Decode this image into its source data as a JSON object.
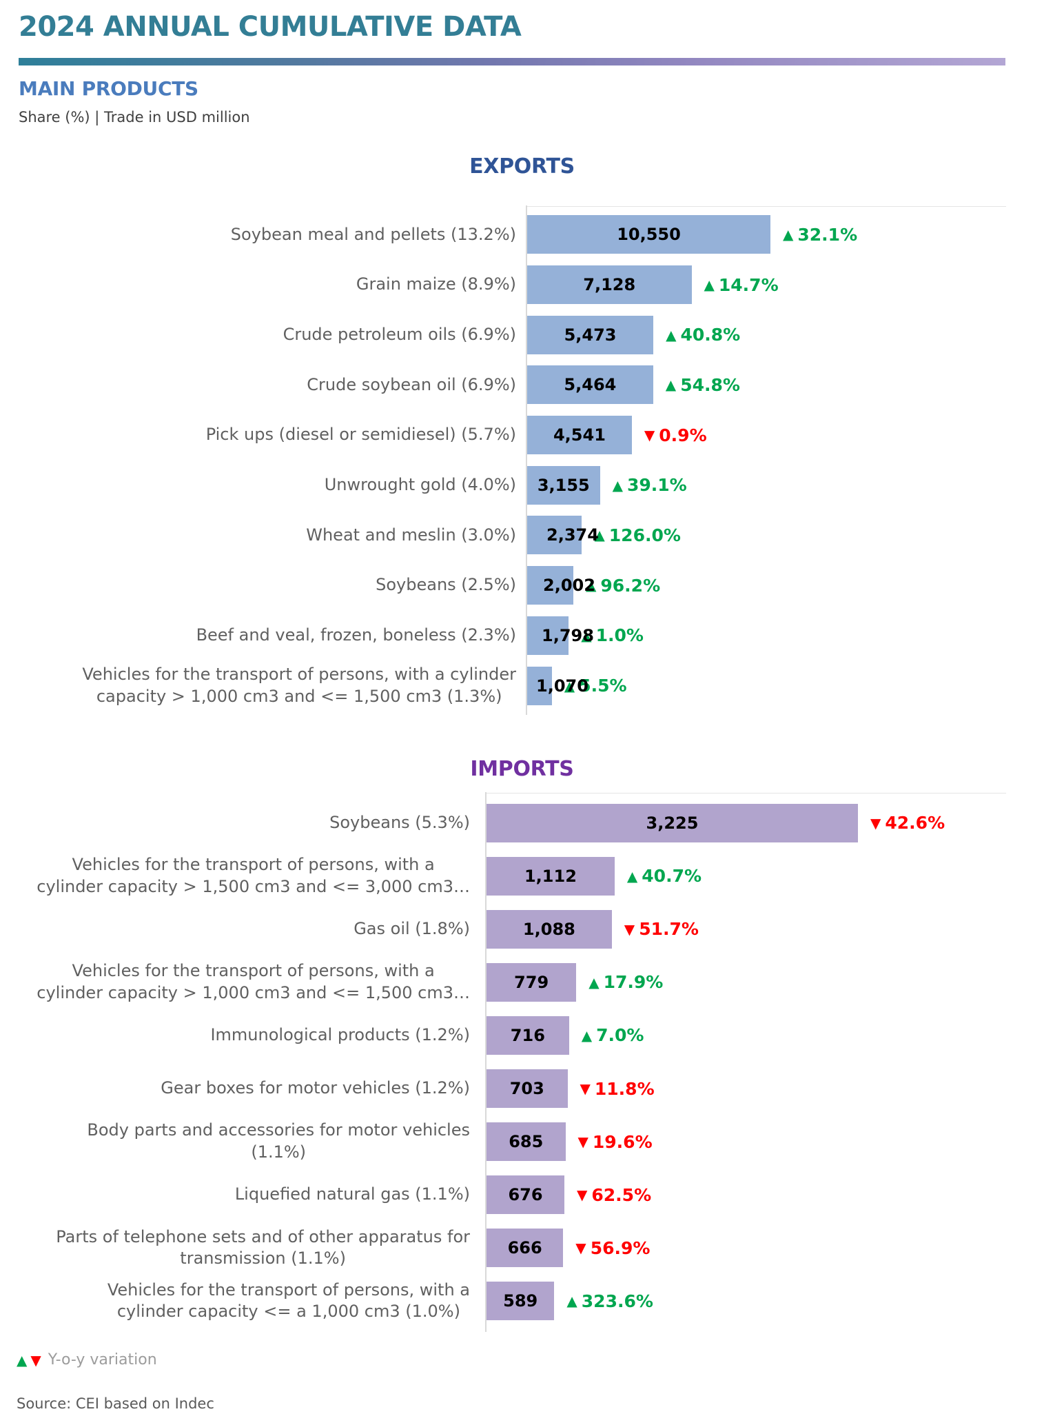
{
  "header": {
    "title": "2024 ANNUAL CUMULATIVE DATA",
    "section": "MAIN PRODUCTS",
    "units_note": "Share (%) | Trade in USD million"
  },
  "colors": {
    "accent_teal": "#337E95",
    "accent_blue": "#4A7CBD",
    "exports_title": "#2F5496",
    "imports_title": "#7030A0",
    "export_bar": "#95B1D8",
    "import_bar": "#B1A4CD",
    "up_green": "#00A64F",
    "down_red": "#FF0000"
  },
  "chart_data": [
    {
      "type": "bar",
      "orientation": "horizontal",
      "title": "EXPORTS",
      "unit": "USD million",
      "bar_color": "#95B1D8",
      "title_color": "#2F5496",
      "value_axis": "hidden",
      "grid": false,
      "legend_position": "none",
      "categories": [
        "Soybean meal and pellets (13.2%)",
        "Grain maize (8.9%)",
        "Crude petroleum oils (6.9%)",
        "Crude soybean oil (6.9%)",
        "Pick ups (diesel or semidiesel) (5.7%)",
        "Unwrought gold (4.0%)",
        "Wheat and meslin (3.0%)",
        "Soybeans (2.5%)",
        "Beef and veal, frozen, boneless (2.3%)",
        "Vehicles for the transport of persons, with a cylinder\ncapacity > 1,000 cm3 and <= 1,500 cm3 (1.3%)"
      ],
      "values": [
        10550,
        7128,
        5473,
        5464,
        4541,
        3155,
        2374,
        2002,
        1798,
        1070
      ],
      "value_labels": [
        "10,550",
        "7,128",
        "5,473",
        "5,464",
        "4,541",
        "3,155",
        "2,374",
        "2,002",
        "1,798",
        "1,070"
      ],
      "changes": [
        {
          "direction": "up",
          "pct": "32.1%"
        },
        {
          "direction": "up",
          "pct": "14.7%"
        },
        {
          "direction": "up",
          "pct": "40.8%"
        },
        {
          "direction": "up",
          "pct": "54.8%"
        },
        {
          "direction": "down",
          "pct": "0.9%"
        },
        {
          "direction": "up",
          "pct": "39.1%"
        },
        {
          "direction": "up",
          "pct": "126.0%"
        },
        {
          "direction": "up",
          "pct": "96.2%"
        },
        {
          "direction": "up",
          "pct": "1.0%"
        },
        {
          "direction": "up",
          "pct": "5.5%"
        }
      ]
    },
    {
      "type": "bar",
      "orientation": "horizontal",
      "title": "IMPORTS",
      "unit": "USD million",
      "bar_color": "#B1A4CD",
      "title_color": "#7030A0",
      "value_axis": "hidden",
      "grid": false,
      "legend_position": "none",
      "categories": [
        "Soybeans (5.3%)",
        "Vehicles for the transport of persons, with a\ncylinder capacity > 1,500 cm3 and <= 3,000 cm3…",
        "Gas oil (1.8%)",
        "Vehicles for the transport of persons, with a\ncylinder capacity > 1,000 cm3 and <= 1,500 cm3…",
        "Immunological products (1.2%)",
        "Gear boxes for motor vehicles  (1.2%)",
        "Body parts and accessories for motor vehicles\n(1.1%)",
        "Liquefied natural gas (1.1%)",
        "Parts of telephone sets and of other apparatus for\ntransmission  (1.1%)",
        "Vehicles for the transport of persons, with a\ncylinder capacity <= a 1,000 cm3 (1.0%)"
      ],
      "values": [
        3225,
        1112,
        1088,
        779,
        716,
        703,
        685,
        676,
        666,
        589
      ],
      "value_labels": [
        "3,225",
        "1,112",
        "1,088",
        "779",
        "716",
        "703",
        "685",
        "676",
        "666",
        "589"
      ],
      "changes": [
        {
          "direction": "down",
          "pct": "42.6%"
        },
        {
          "direction": "up",
          "pct": "40.7%"
        },
        {
          "direction": "down",
          "pct": "51.7%"
        },
        {
          "direction": "up",
          "pct": "17.9%"
        },
        {
          "direction": "up",
          "pct": "7.0%"
        },
        {
          "direction": "down",
          "pct": "11.8%"
        },
        {
          "direction": "down",
          "pct": "19.6%"
        },
        {
          "direction": "down",
          "pct": "62.5%"
        },
        {
          "direction": "down",
          "pct": "56.9%"
        },
        {
          "direction": "up",
          "pct": "323.6%"
        }
      ]
    }
  ],
  "footer": {
    "legend_up_icon": "▲",
    "legend_down_icon": "▼",
    "legend_text": "Y-o-y variation",
    "source": "Source: CEI based on Indec"
  }
}
